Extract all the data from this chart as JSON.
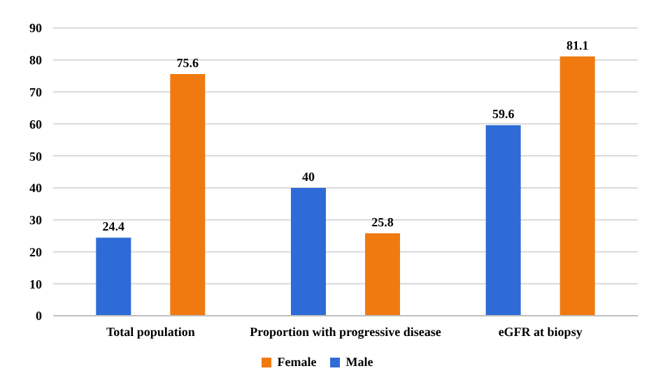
{
  "chart_data": {
    "type": "bar",
    "categories": [
      "Total population",
      "Proportion with progressive disease",
      "eGFR at biopsy"
    ],
    "series": [
      {
        "name": "Male",
        "color": "#2e6bd6",
        "values": [
          24.4,
          40,
          59.6
        ]
      },
      {
        "name": "Female",
        "color": "#f07a10",
        "values": [
          75.6,
          25.8,
          81.1
        ]
      }
    ],
    "ylim": [
      0,
      90
    ],
    "yticks": [
      0,
      10,
      20,
      30,
      40,
      50,
      60,
      70,
      80,
      90
    ],
    "grid": "y",
    "legend": "bottom",
    "data_labels": true
  }
}
